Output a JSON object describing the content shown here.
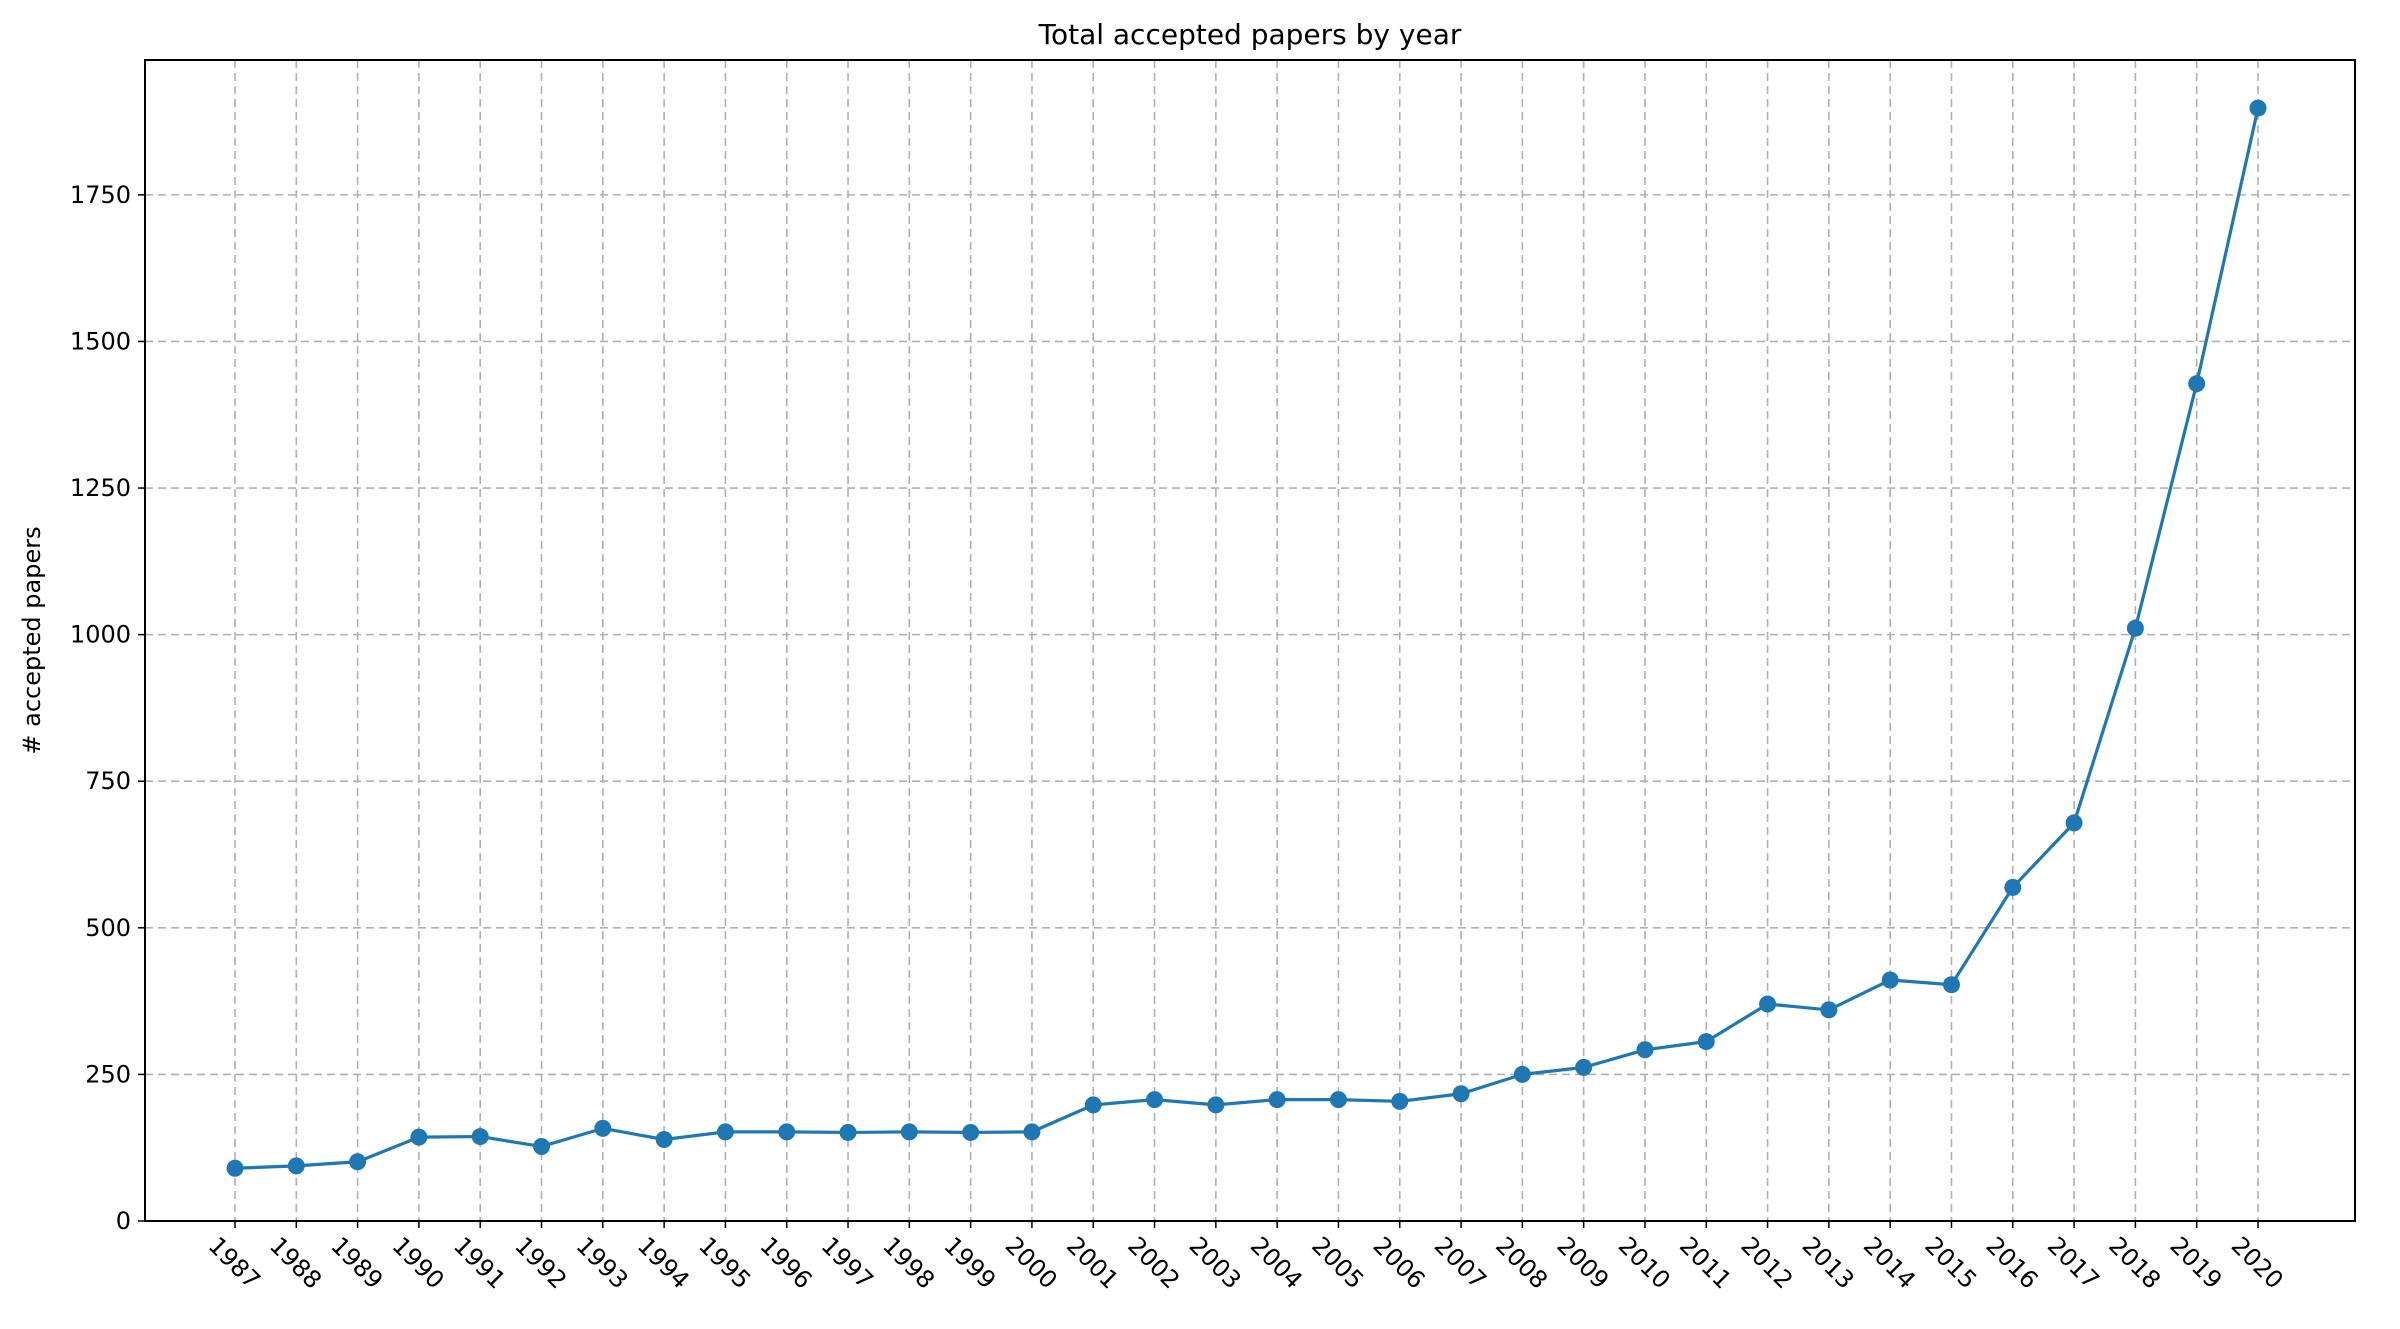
{
  "chart_data": {
    "type": "line",
    "title": "Total accepted papers by year",
    "xlabel": "",
    "ylabel": "# accepted papers",
    "x": [
      "1987",
      "1988",
      "1989",
      "1990",
      "1991",
      "1992",
      "1993",
      "1994",
      "1995",
      "1996",
      "1997",
      "1998",
      "1999",
      "2000",
      "2001",
      "2002",
      "2003",
      "2004",
      "2005",
      "2006",
      "2007",
      "2008",
      "2009",
      "2010",
      "2011",
      "2012",
      "2013",
      "2014",
      "2015",
      "2016",
      "2017",
      "2018",
      "2019",
      "2020"
    ],
    "series": [
      {
        "values": [
          90,
          94,
          101,
          143,
          144,
          127,
          158,
          139,
          152,
          152,
          151,
          152,
          151,
          152,
          198,
          207,
          198,
          207,
          207,
          204,
          217,
          250,
          262,
          292,
          306,
          370,
          360,
          411,
          403,
          569,
          679,
          1011,
          1428,
          1898
        ],
        "color": "#1f77b4",
        "marker": "circle"
      }
    ],
    "yticks": [
      0,
      250,
      500,
      750,
      1000,
      1250,
      1500,
      1750
    ],
    "ylim": [
      0,
      1980
    ],
    "grid": true,
    "grid_style": "dashed",
    "grid_color": "#b0b0b0",
    "xtick_rotation": "-45deg"
  }
}
